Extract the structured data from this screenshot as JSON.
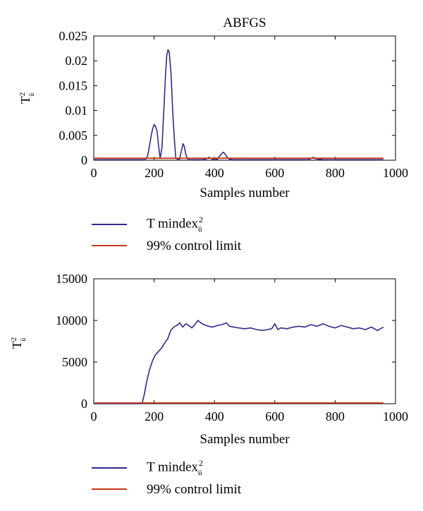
{
  "chart_data": [
    {
      "type": "line",
      "title": "ABFGS",
      "xlabel": "Samples number",
      "ylabel": "T",
      "ylabel_sup": "2",
      "ylabel_sub": "û",
      "xlim": [
        0,
        1000
      ],
      "ylim": [
        0,
        0.025
      ],
      "xticks": [
        0,
        200,
        400,
        600,
        800,
        1000
      ],
      "yticks": [
        0,
        0.005,
        0.01,
        0.015,
        0.02,
        0.025
      ],
      "ytick_labels": [
        "0",
        "0.005",
        "0.01",
        "0.015",
        "0.02",
        "0.025"
      ],
      "grid": false,
      "series": [
        {
          "name": "T mindex",
          "name_sup": "2",
          "name_sub": "û",
          "color": "#2e2a8e",
          "x": [
            0,
            170,
            178,
            185,
            192,
            196,
            200,
            205,
            210,
            215,
            220,
            226,
            232,
            238,
            242,
            246,
            250,
            256,
            262,
            268,
            272,
            278,
            284,
            290,
            296,
            300,
            305,
            310,
            316,
            340,
            360,
            375,
            382,
            390,
            400,
            410,
            418,
            425,
            430,
            436,
            442,
            450,
            460,
            500,
            560,
            620,
            680,
            710,
            722,
            728,
            735,
            760,
            820,
            880,
            960
          ],
          "y": [
            0.0001,
            0.0001,
            0.0008,
            0.003,
            0.0055,
            0.0065,
            0.0072,
            0.0068,
            0.0058,
            0.0028,
            0.0004,
            0.0025,
            0.0098,
            0.0175,
            0.0212,
            0.0222,
            0.0218,
            0.0175,
            0.0095,
            0.0035,
            0.0004,
            0.0002,
            0.0002,
            0.0018,
            0.0033,
            0.0028,
            0.0012,
            0.0003,
            0.0001,
            0.0001,
            0.0001,
            0.0003,
            0.0006,
            0.0003,
            0.0001,
            0.0002,
            0.0009,
            0.0014,
            0.0016,
            0.0012,
            0.0006,
            0.0002,
            0.0001,
            0.0001,
            0.0001,
            0.0001,
            0.0001,
            0.0001,
            0.0004,
            0.0006,
            0.0003,
            0.0001,
            0.0001,
            0.0001,
            0.0001
          ]
        },
        {
          "name": "99% control limit",
          "color": "#c8381a",
          "x": [
            0,
            960
          ],
          "y": [
            0.0004,
            0.0004
          ]
        }
      ],
      "legend": "below"
    },
    {
      "type": "line",
      "xlabel": "Samples number",
      "ylabel": "T",
      "ylabel_sup": "2",
      "ylabel_sub": "ü",
      "xlim": [
        0,
        1000
      ],
      "ylim": [
        0,
        15000
      ],
      "xticks": [
        0,
        200,
        400,
        600,
        800,
        1000
      ],
      "yticks": [
        0,
        5000,
        10000,
        15000
      ],
      "ytick_labels": [
        "0",
        "5000",
        "10000",
        "15000"
      ],
      "grid": false,
      "series": [
        {
          "name": "T mindex",
          "name_sup": "2",
          "name_sub": "ü",
          "color": "#2e2a8e",
          "x": [
            0,
            160,
            168,
            175,
            185,
            195,
            205,
            215,
            225,
            235,
            245,
            255,
            265,
            275,
            285,
            295,
            305,
            315,
            325,
            335,
            345,
            355,
            365,
            380,
            395,
            410,
            425,
            440,
            450,
            465,
            480,
            500,
            520,
            540,
            560,
            575,
            590,
            600,
            610,
            620,
            640,
            660,
            680,
            700,
            720,
            740,
            760,
            780,
            800,
            820,
            840,
            860,
            880,
            900,
            920,
            940,
            960
          ],
          "y": [
            0,
            0,
            1200,
            2600,
            4100,
            5200,
            5900,
            6300,
            6700,
            7300,
            7800,
            8800,
            9200,
            9400,
            9700,
            9200,
            9600,
            9400,
            9100,
            9500,
            10000,
            9700,
            9500,
            9300,
            9200,
            9400,
            9500,
            9700,
            9300,
            9200,
            9100,
            9000,
            9100,
            8900,
            8800,
            8900,
            9000,
            9600,
            8900,
            9100,
            9000,
            9200,
            9300,
            9200,
            9500,
            9300,
            9600,
            9300,
            9100,
            9400,
            9200,
            9000,
            9100,
            8900,
            9200,
            8800,
            9200
          ]
        },
        {
          "name": "99% control limit",
          "color": "#c8381a",
          "x": [
            0,
            960
          ],
          "y": [
            90,
            90
          ]
        }
      ],
      "legend": "below"
    }
  ]
}
